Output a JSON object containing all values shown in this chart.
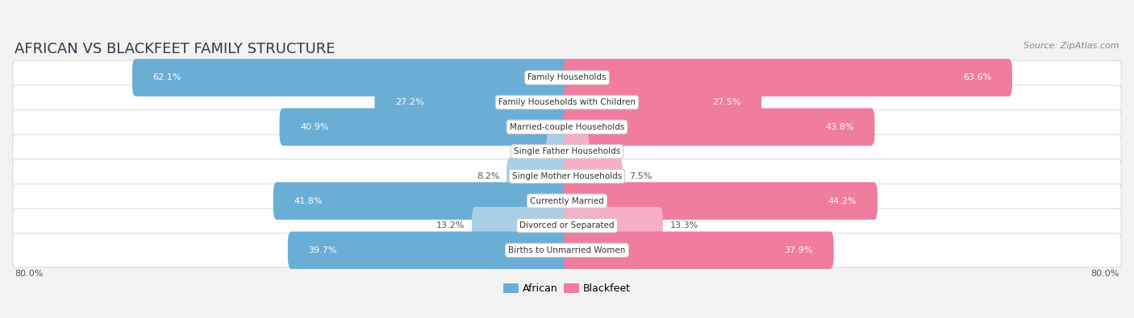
{
  "title": "AFRICAN VS BLACKFEET FAMILY STRUCTURE",
  "source": "Source: ZipAtlas.com",
  "categories": [
    "Family Households",
    "Family Households with Children",
    "Married-couple Households",
    "Single Father Households",
    "Single Mother Households",
    "Currently Married",
    "Divorced or Separated",
    "Births to Unmarried Women"
  ],
  "african_values": [
    62.1,
    27.2,
    40.9,
    2.5,
    8.2,
    41.8,
    13.2,
    39.7
  ],
  "blackfeet_values": [
    63.6,
    27.5,
    43.8,
    2.7,
    7.5,
    44.2,
    13.3,
    37.9
  ],
  "african_color_strong": "#6aaed6",
  "african_color_light": "#aacfe8",
  "blackfeet_color_strong": "#f07ca0",
  "blackfeet_color_light": "#f5b0c8",
  "axis_max": 80.0,
  "background_color": "#f2f2f2",
  "row_bg_color": "#ffffff",
  "axis_label_left": "80.0%",
  "axis_label_right": "80.0%",
  "title_fontsize": 13,
  "source_fontsize": 8,
  "value_fontsize": 8,
  "category_fontsize": 7.5,
  "legend_fontsize": 9
}
